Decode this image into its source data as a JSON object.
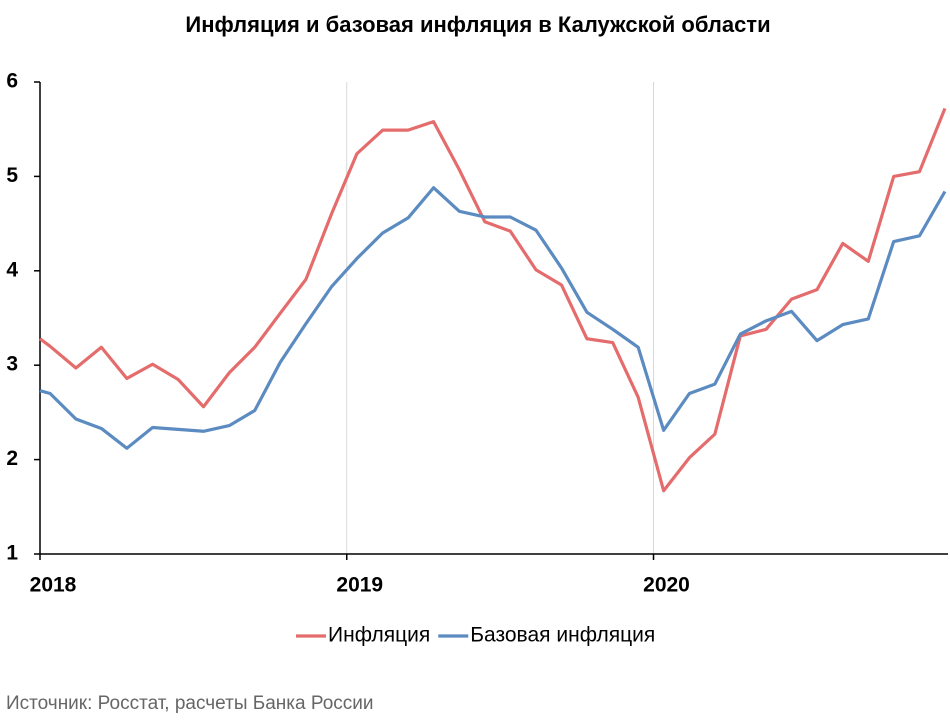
{
  "chart_data": {
    "type": "line",
    "title": "Инфляция и базовая инфляция в Калужской области",
    "source": "Источник: Росстат, расчеты Банка России",
    "x": [
      2018,
      2018.033,
      2018.117,
      2018.2,
      2018.283,
      2018.367,
      2018.45,
      2018.533,
      2018.617,
      2018.7,
      2018.783,
      2018.867,
      2018.95,
      2019.033,
      2019.117,
      2019.2,
      2019.283,
      2019.367,
      2019.45,
      2019.533,
      2019.617,
      2019.7,
      2019.783,
      2019.867,
      2019.95,
      2020.033,
      2020.117,
      2020.2,
      2020.283,
      2020.367,
      2020.45,
      2020.533,
      2020.617,
      2020.7,
      2020.783,
      2020.867,
      2020.95
    ],
    "series": [
      {
        "name": "Инфляция",
        "color": "#e46c6c",
        "values": [
          3.28,
          3.2,
          2.97,
          3.19,
          2.86,
          3.01,
          2.85,
          2.56,
          2.92,
          3.19,
          3.55,
          3.91,
          4.6,
          5.24,
          5.49,
          5.49,
          5.58,
          5.07,
          4.52,
          4.42,
          4.01,
          3.85,
          3.28,
          3.24,
          2.66,
          1.67,
          2.02,
          2.27,
          3.31,
          3.38,
          3.7,
          3.8,
          4.29,
          4.1,
          5.0,
          5.05,
          5.72
        ]
      },
      {
        "name": "Базовая инфляция",
        "color": "#5b8bc0",
        "values": [
          2.73,
          2.7,
          2.43,
          2.33,
          2.12,
          2.34,
          2.32,
          2.3,
          2.36,
          2.52,
          3.03,
          3.44,
          3.83,
          4.13,
          4.4,
          4.56,
          4.88,
          4.63,
          4.57,
          4.57,
          4.43,
          4.03,
          3.56,
          3.38,
          3.19,
          2.31,
          2.7,
          2.8,
          3.33,
          3.47,
          3.57,
          3.26,
          3.43,
          3.49,
          4.31,
          4.37,
          4.84
        ]
      }
    ],
    "xlim": [
      2018,
      2020.96
    ],
    "xticks": [
      2018,
      2019,
      2020
    ],
    "ylim": [
      1,
      6
    ],
    "yticks": [
      1,
      2,
      3,
      4,
      5,
      6
    ],
    "grid": "x",
    "legend": "bottom"
  }
}
